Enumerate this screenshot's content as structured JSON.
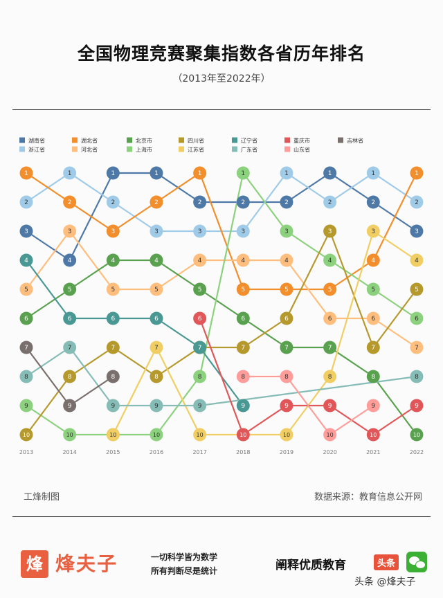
{
  "title": "全国物理竞赛聚集指数各省历年排名",
  "subtitle": "（2013年至2022年）",
  "credit_left": "工烽制图",
  "credit_right": "数据来源：教育信息公开网",
  "footer": {
    "logo_char": "烽",
    "brand": "烽夫子",
    "slogan1": "一切科学皆为数学",
    "slogan2": "所有判断尽是统计",
    "tagline": "阐释优质教育",
    "badge": "头条",
    "watermark": "头条 @烽夫子",
    "wechat_icon": "wechat-icon"
  },
  "chart_data": {
    "type": "line",
    "x": [
      "2013",
      "2014",
      "2015",
      "2016",
      "2017",
      "2018",
      "2019",
      "2020",
      "2021",
      "2022"
    ],
    "ylim": [
      1,
      10
    ],
    "y_reversed": true,
    "legend_placement": "top",
    "grid": false,
    "series": [
      {
        "name": "湖南省",
        "color": "#4e79a7",
        "values": [
          3,
          4,
          1,
          1,
          2,
          2,
          2,
          1,
          2,
          3
        ]
      },
      {
        "name": "浙江省",
        "color": "#a0cbe8",
        "values": [
          2,
          1,
          2,
          3,
          3,
          3,
          1,
          2,
          1,
          2
        ]
      },
      {
        "name": "湖北省",
        "color": "#f28e2b",
        "values": [
          1,
          2,
          3,
          2,
          1,
          5,
          5,
          5,
          4,
          1
        ]
      },
      {
        "name": "河北省",
        "color": "#ffbe7d",
        "values": [
          5,
          3,
          5,
          5,
          4,
          4,
          4,
          6,
          6,
          7
        ]
      },
      {
        "name": "北京市",
        "color": "#59a14f",
        "values": [
          6,
          5,
          4,
          4,
          5,
          6,
          7,
          7,
          8,
          10
        ]
      },
      {
        "name": "上海市",
        "color": "#8cd17d",
        "values": [
          9,
          10,
          10,
          10,
          8,
          1,
          3,
          4,
          5,
          6
        ]
      },
      {
        "name": "四川省",
        "color": "#b6992d",
        "values": [
          10,
          8,
          7,
          8,
          7,
          7,
          6,
          3,
          7,
          5
        ]
      },
      {
        "name": "江苏省",
        "color": "#f1ce63",
        "values": [
          null,
          null,
          10,
          7,
          10,
          10,
          10,
          8,
          3,
          4
        ]
      },
      {
        "name": "辽宁省",
        "color": "#499894",
        "values": [
          4,
          6,
          6,
          6,
          7,
          9,
          null,
          null,
          null,
          null
        ]
      },
      {
        "name": "广东省",
        "color": "#86bcb6",
        "values": [
          8,
          7,
          9,
          9,
          9,
          null,
          null,
          null,
          null,
          8
        ]
      },
      {
        "name": "重庆市",
        "color": "#e15759",
        "values": [
          null,
          null,
          null,
          null,
          6,
          10,
          9,
          9,
          10,
          9
        ]
      },
      {
        "name": "山东省",
        "color": "#ff9d9a",
        "values": [
          null,
          null,
          null,
          null,
          null,
          8,
          8,
          10,
          9,
          null
        ]
      },
      {
        "name": "吉林省",
        "color": "#79706e",
        "values": [
          7,
          9,
          8,
          null,
          null,
          null,
          null,
          null,
          null,
          null
        ]
      }
    ]
  }
}
